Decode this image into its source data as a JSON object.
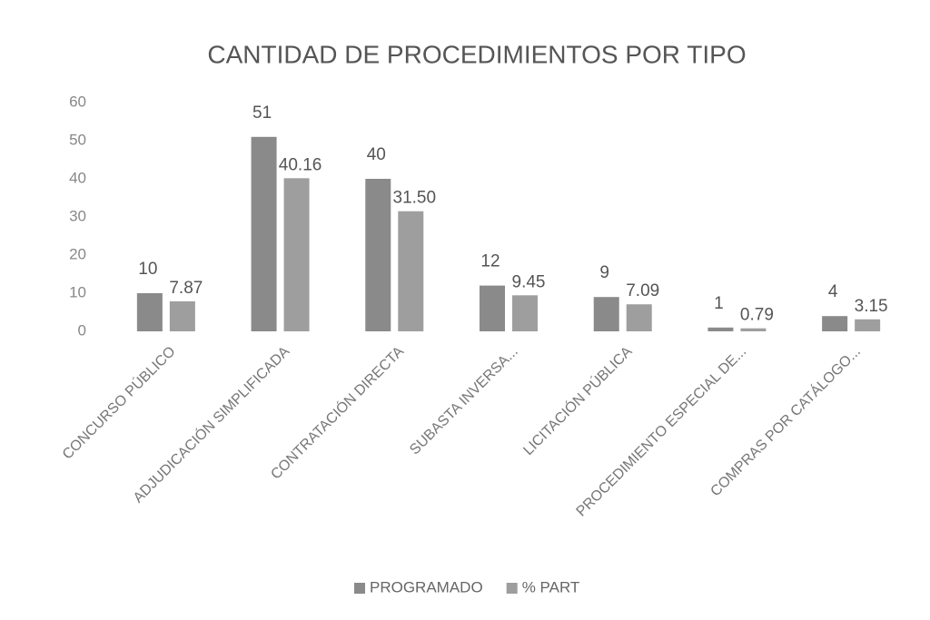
{
  "chart_data": {
    "type": "bar",
    "title": "CANTIDAD DE PROCEDIMIENTOS POR TIPO",
    "categories": [
      "CONCURSO PÚBLICO",
      "ADJUDICACIÓN SIMPLIFICADA",
      "CONTRATACIÓN DIRECTA",
      "SUBASTA INVERSA...",
      "LICITACIÓN PÚBLICA",
      "PROCEDIMIENTO ESPECIAL DE...",
      "COMPRAS POR CATÁLOGO..."
    ],
    "series": [
      {
        "name": "PROGRAMADO",
        "color": "#8a8a8a",
        "values": [
          10,
          51,
          40,
          12,
          9,
          1,
          4
        ]
      },
      {
        "name": "% PART",
        "color": "#9e9e9e",
        "values": [
          7.87,
          40.16,
          31.5,
          9.45,
          7.09,
          0.79,
          3.15
        ],
        "value_labels": [
          "7.87",
          "40.16",
          "31.50",
          "9.45",
          "7.09",
          "0.79",
          "3.15"
        ]
      }
    ],
    "ylim": [
      0,
      60
    ],
    "yticks": [
      0,
      10,
      20,
      30,
      40,
      50,
      60
    ],
    "legend": "bottom"
  }
}
